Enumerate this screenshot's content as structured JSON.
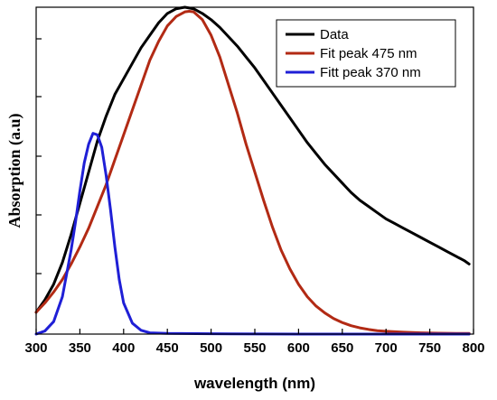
{
  "chart_data": {
    "type": "line",
    "title": "",
    "xlabel": "wavelength (nm)",
    "ylabel": "Absorption (a.u)",
    "xlim": [
      300,
      800
    ],
    "ylim": [
      0,
      1.05
    ],
    "x_ticks": [
      300,
      350,
      400,
      450,
      500,
      550,
      600,
      650,
      700,
      750,
      800
    ],
    "x_tick_labels": [
      "300",
      "350",
      "400",
      "450",
      "500",
      "550",
      "600",
      "650",
      "700",
      "750",
      "800"
    ],
    "y_tick_labels_shown": false,
    "grid": false,
    "legend_position": "top-right",
    "series": [
      {
        "name": "Data",
        "color": "#000000",
        "x": [
          300,
          310,
          320,
          330,
          340,
          350,
          360,
          370,
          380,
          390,
          400,
          410,
          420,
          430,
          440,
          450,
          460,
          470,
          480,
          490,
          500,
          510,
          520,
          530,
          540,
          550,
          560,
          570,
          580,
          590,
          600,
          610,
          620,
          630,
          640,
          650,
          660,
          670,
          680,
          690,
          700,
          710,
          720,
          730,
          740,
          750,
          760,
          770,
          780,
          790,
          795
        ],
        "y": [
          0.07,
          0.11,
          0.16,
          0.23,
          0.32,
          0.42,
          0.52,
          0.62,
          0.7,
          0.77,
          0.82,
          0.87,
          0.92,
          0.96,
          1.0,
          1.03,
          1.045,
          1.05,
          1.045,
          1.03,
          1.01,
          0.985,
          0.955,
          0.925,
          0.89,
          0.855,
          0.815,
          0.775,
          0.735,
          0.695,
          0.655,
          0.615,
          0.58,
          0.545,
          0.515,
          0.485,
          0.455,
          0.43,
          0.41,
          0.39,
          0.37,
          0.355,
          0.34,
          0.325,
          0.31,
          0.295,
          0.28,
          0.265,
          0.25,
          0.235,
          0.225
        ]
      },
      {
        "name": "Fit peak 475 nm",
        "color": "#b22a14",
        "x": [
          300,
          310,
          320,
          330,
          340,
          350,
          360,
          370,
          380,
          390,
          400,
          410,
          420,
          430,
          440,
          450,
          460,
          470,
          475,
          480,
          490,
          500,
          510,
          520,
          530,
          540,
          550,
          560,
          570,
          580,
          590,
          600,
          610,
          620,
          630,
          640,
          650,
          660,
          670,
          680,
          690,
          700,
          720,
          740,
          760,
          780,
          795
        ],
        "y": [
          0.07,
          0.1,
          0.135,
          0.175,
          0.225,
          0.28,
          0.34,
          0.41,
          0.48,
          0.56,
          0.64,
          0.72,
          0.8,
          0.88,
          0.94,
          0.99,
          1.02,
          1.035,
          1.037,
          1.035,
          1.01,
          0.96,
          0.89,
          0.8,
          0.71,
          0.61,
          0.52,
          0.43,
          0.345,
          0.27,
          0.21,
          0.16,
          0.12,
          0.09,
          0.068,
          0.05,
          0.037,
          0.027,
          0.02,
          0.015,
          0.011,
          0.009,
          0.006,
          0.004,
          0.003,
          0.002,
          0.002
        ]
      },
      {
        "name": "Fitt peak 370 nm",
        "color": "#1f1fd6",
        "x": [
          300,
          310,
          320,
          330,
          340,
          345,
          350,
          355,
          360,
          365,
          370,
          375,
          380,
          385,
          390,
          395,
          400,
          410,
          420,
          430,
          450,
          500,
          600,
          700,
          795
        ],
        "y": [
          0.0,
          0.01,
          0.04,
          0.12,
          0.27,
          0.36,
          0.46,
          0.55,
          0.61,
          0.645,
          0.64,
          0.6,
          0.51,
          0.4,
          0.28,
          0.175,
          0.1,
          0.035,
          0.012,
          0.004,
          0.002,
          0.001,
          0.0,
          0.0,
          0.0
        ]
      }
    ]
  }
}
